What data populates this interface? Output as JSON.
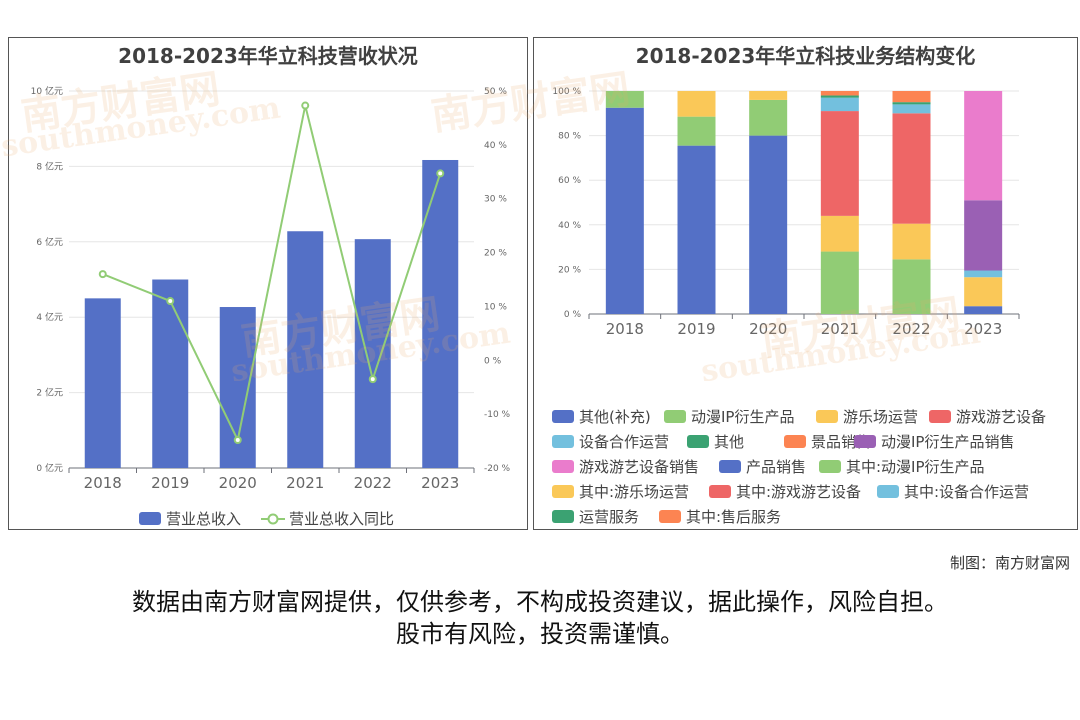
{
  "left_chart": {
    "title": "2018-2023年华立科技营收状况",
    "legend": {
      "bar": "营业总收入",
      "line": "营业总收入同比"
    }
  },
  "right_chart": {
    "title": "2018-2023年华立科技业务结构变化",
    "legend": [
      {
        "label": "其他(补充)",
        "color": "#5470c6"
      },
      {
        "label": "动漫IP衍生产品",
        "color": "#91cc75"
      },
      {
        "label": "游乐场运营",
        "color": "#fac858"
      },
      {
        "label": "游戏游艺设备",
        "color": "#ee6666"
      },
      {
        "label": "设备合作运营",
        "color": "#73c0de"
      },
      {
        "label": "其他",
        "color": "#3ba272"
      },
      {
        "label": "景品销售",
        "color": "#fc8452"
      },
      {
        "label": "动漫IP衍生产品销售",
        "color": "#9a60b4"
      },
      {
        "label": "游戏游艺设备销售",
        "color": "#ea7ccc"
      },
      {
        "label": "产品销售",
        "color": "#5470c6"
      },
      {
        "label": "其中:动漫IP衍生产品",
        "color": "#91cc75"
      },
      {
        "label": "其中:游乐场运营",
        "color": "#fac858"
      },
      {
        "label": "其中:游戏游艺设备",
        "color": "#ee6666"
      },
      {
        "label": "其中:设备合作运营",
        "color": "#73c0de"
      },
      {
        "label": "运营服务",
        "color": "#3ba272"
      },
      {
        "label": "其中:售后服务",
        "color": "#fc8452"
      }
    ]
  },
  "watermark": {
    "cn": "南方财富网",
    "en": "southmoney.com"
  },
  "credit": "制图：南方财富网",
  "disclaimer": {
    "line1": "数据由南方财富网提供，仅供参考，不构成投资建议，据此操作，风险自担。",
    "line2": "股市有风险，投资需谨慎。"
  },
  "chart_data": [
    {
      "type": "bar",
      "title": "2018-2023年华立科技营收状况",
      "categories": [
        "2018",
        "2019",
        "2020",
        "2021",
        "2022",
        "2023"
      ],
      "y_ticks": [
        "0 亿元",
        "2 亿元",
        "4 亿元",
        "6 亿元",
        "8 亿元",
        "10 亿元"
      ],
      "y2_ticks": [
        "-20 %",
        "-10 %",
        "0 %",
        "10 %",
        "20 %",
        "30 %",
        "40 %",
        "50 %"
      ],
      "ylim": [
        0,
        10
      ],
      "y2lim": [
        -20,
        50
      ],
      "series": [
        {
          "name": "营业总收入",
          "type": "bar",
          "axis": "left",
          "color": "#5470c6",
          "values": [
            4.5,
            5.0,
            4.27,
            6.28,
            6.07,
            8.17
          ]
        },
        {
          "name": "营业总收入同比",
          "type": "line",
          "axis": "right",
          "color": "#91cc75",
          "values": [
            16.0,
            11.0,
            -14.8,
            47.3,
            -3.5,
            34.7
          ]
        }
      ]
    },
    {
      "type": "bar",
      "stacked": true,
      "title": "2018-2023年华立科技业务结构变化",
      "categories": [
        "2018",
        "2019",
        "2020",
        "2021",
        "2022",
        "2023"
      ],
      "y_ticks": [
        "0 %",
        "20 %",
        "40 %",
        "60 %",
        "80 %",
        "100 %"
      ],
      "ylim": [
        0,
        100
      ],
      "series": [
        {
          "name": "其他(补充)",
          "color": "#5470c6",
          "values": [
            92.5,
            75.5,
            80.0,
            0,
            0,
            3.5
          ]
        },
        {
          "name": "动漫IP衍生产品",
          "color": "#91cc75",
          "values": [
            7.5,
            13.0,
            16.0,
            28.0,
            24.5,
            0
          ]
        },
        {
          "name": "游乐场运营",
          "color": "#fac858",
          "values": [
            0,
            11.5,
            4.0,
            16.0,
            16.0,
            13.0
          ]
        },
        {
          "name": "游戏游艺设备",
          "color": "#ee6666",
          "values": [
            0,
            0,
            0,
            47.0,
            49.5,
            0
          ]
        },
        {
          "name": "设备合作运营",
          "color": "#73c0de",
          "values": [
            0,
            0,
            0,
            6.0,
            4.0,
            3.0
          ]
        },
        {
          "name": "其他",
          "color": "#3ba272",
          "values": [
            0,
            0,
            0,
            1.0,
            1.0,
            0
          ]
        },
        {
          "name": "景品销售",
          "color": "#fc8452",
          "values": [
            0,
            0,
            0,
            2.0,
            5.0,
            0
          ]
        },
        {
          "name": "动漫IP衍生产品销售",
          "color": "#9a60b4",
          "values": [
            0,
            0,
            0,
            0,
            0,
            31.5
          ]
        },
        {
          "name": "游戏游艺设备销售",
          "color": "#ea7ccc",
          "values": [
            0,
            0,
            0,
            0,
            0,
            49.0
          ]
        }
      ]
    }
  ]
}
